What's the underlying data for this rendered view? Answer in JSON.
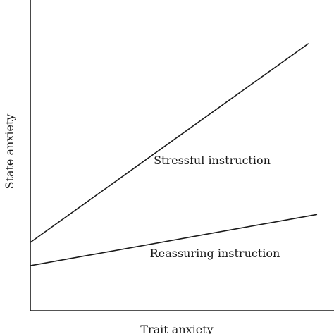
{
  "chart_data": {
    "type": "line",
    "title": "",
    "xlabel": "Trait anxiety",
    "ylabel": "State anxiety",
    "xlim": [
      0,
      100
    ],
    "ylim": [
      0,
      100
    ],
    "grid": false,
    "legend": "none",
    "series": [
      {
        "name": "Stressful instruction",
        "x": [
          0,
          97
        ],
        "y": [
          22,
          86
        ]
      },
      {
        "name": "Reassuring instruction",
        "x": [
          0,
          100
        ],
        "y": [
          14.5,
          31
        ]
      }
    ],
    "colors": {
      "line": "#1a1a1a",
      "axis": "#1a1a1a",
      "background": "#ffffff"
    }
  }
}
